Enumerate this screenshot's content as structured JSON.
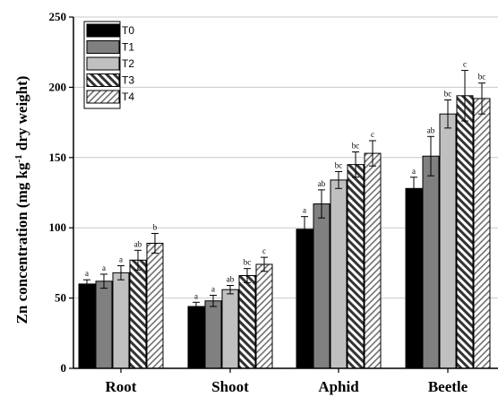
{
  "chart_data": {
    "type": "bar",
    "ylabel_parts": {
      "main": "Zn concentration (mg kg",
      "sup": "-1",
      "tail": " dry weight)"
    },
    "categories": [
      "Root",
      "Shoot",
      "Aphid",
      "Beetle"
    ],
    "ylim": [
      0,
      250
    ],
    "yticks": [
      0,
      50,
      100,
      150,
      200,
      250
    ],
    "grid": true,
    "legend_position": "top-left",
    "series": [
      {
        "name": "T0",
        "values": [
          60,
          44,
          99,
          128
        ],
        "errors": [
          3,
          3,
          9,
          8
        ],
        "labels": [
          "a",
          "a",
          "a",
          "a"
        ],
        "color": "#000000",
        "pattern": "solid"
      },
      {
        "name": "T1",
        "values": [
          62,
          48,
          117,
          151
        ],
        "errors": [
          5,
          4,
          10,
          14
        ],
        "labels": [
          "a",
          "a",
          "ab",
          "ab"
        ],
        "color": "#808080",
        "pattern": "solid"
      },
      {
        "name": "T2",
        "values": [
          68,
          56,
          134,
          181
        ],
        "errors": [
          5,
          3,
          6,
          10
        ],
        "labels": [
          "a",
          "ab",
          "bc",
          "bc"
        ],
        "color": "#c0c0c0",
        "pattern": "solid"
      },
      {
        "name": "T3",
        "values": [
          77,
          66,
          145,
          194
        ],
        "errors": [
          7,
          5,
          9,
          18
        ],
        "labels": [
          "ab",
          "bc",
          "bc",
          "c"
        ],
        "color": "#808080",
        "pattern": "backslash"
      },
      {
        "name": "T4",
        "values": [
          89,
          74,
          153,
          192
        ],
        "errors": [
          7,
          5,
          9,
          11
        ],
        "labels": [
          "b",
          "c",
          "c",
          "bc"
        ],
        "color": "#e0e0e0",
        "pattern": "slash"
      }
    ]
  }
}
